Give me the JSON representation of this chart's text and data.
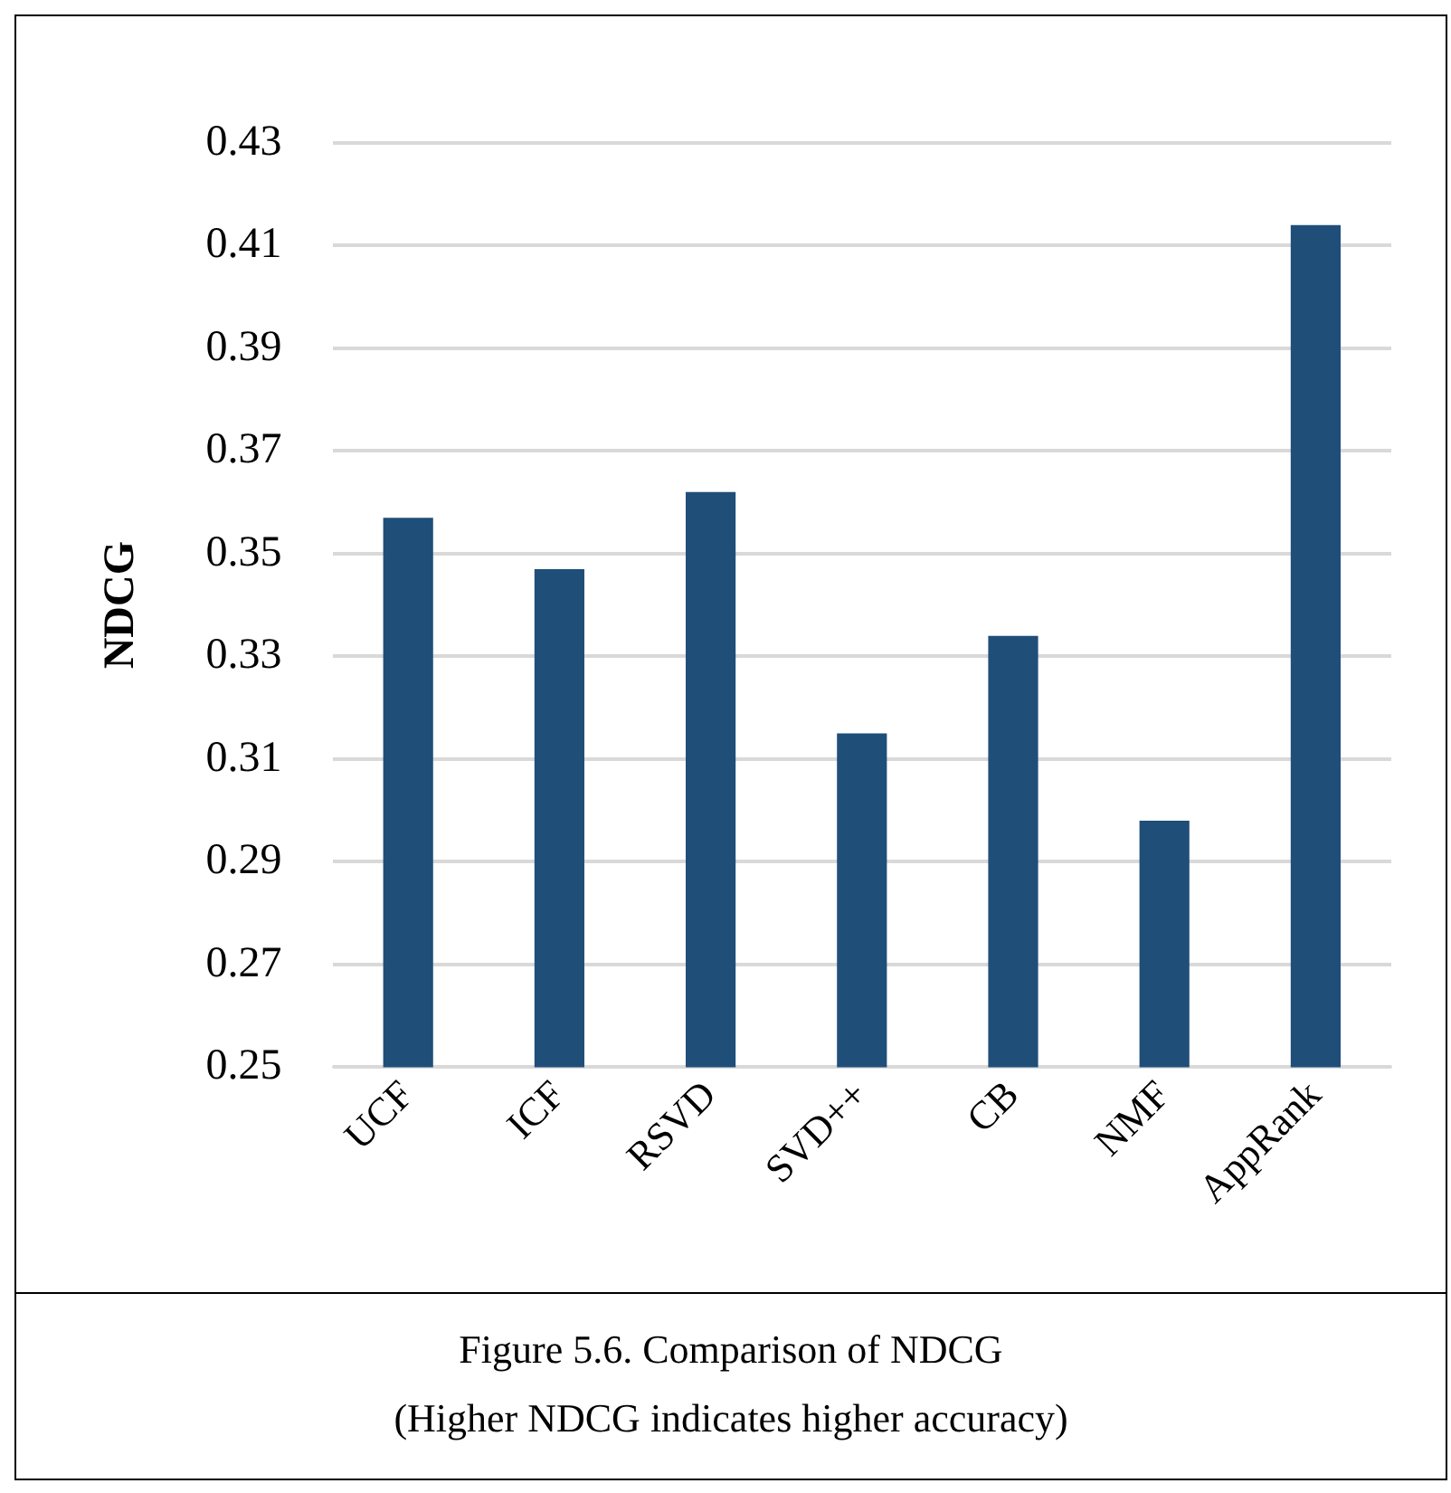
{
  "chart_data": {
    "type": "bar",
    "title": "Figure 5.6. Comparison of NDCG",
    "subtitle": "(Higher NDCG indicates higher accuracy)",
    "ylabel": "NDCG",
    "categories": [
      "UCF",
      "ICF",
      "RSVD",
      "SVD++",
      "CB",
      "NMF",
      "AppRank"
    ],
    "values": [
      0.357,
      0.347,
      0.362,
      0.315,
      0.334,
      0.298,
      0.414
    ],
    "color": "#1f4e79",
    "ylim": [
      0.25,
      0.43
    ],
    "yticks": [
      0.25,
      0.27,
      0.29,
      0.31,
      0.33,
      0.35,
      0.37,
      0.39,
      0.41,
      0.43
    ],
    "grid": "y",
    "legend": false
  }
}
